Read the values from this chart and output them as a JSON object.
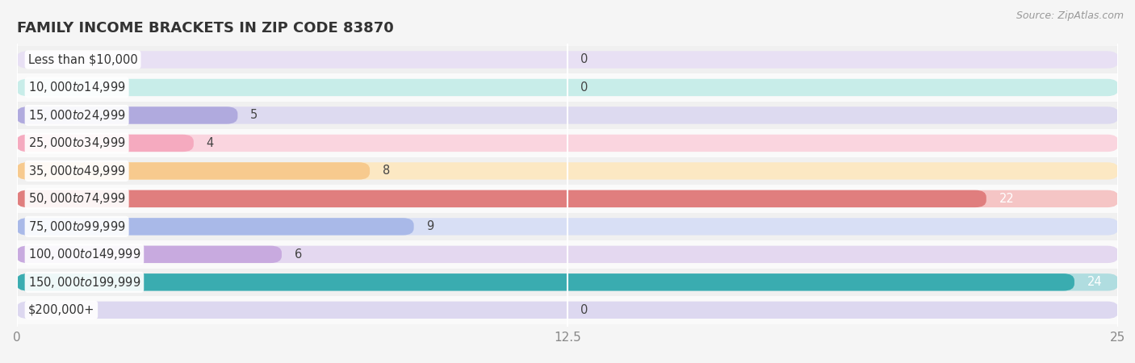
{
  "title": "FAMILY INCOME BRACKETS IN ZIP CODE 83870",
  "source": "Source: ZipAtlas.com",
  "categories": [
    "Less than $10,000",
    "$10,000 to $14,999",
    "$15,000 to $24,999",
    "$25,000 to $34,999",
    "$35,000 to $49,999",
    "$50,000 to $74,999",
    "$75,000 to $99,999",
    "$100,000 to $149,999",
    "$150,000 to $199,999",
    "$200,000+"
  ],
  "values": [
    0,
    0,
    5,
    4,
    8,
    22,
    9,
    6,
    24,
    0
  ],
  "bar_colors": [
    "#c9b4e2",
    "#7dcdc3",
    "#b0aade",
    "#f5aabf",
    "#f7ca8e",
    "#e07e7e",
    "#a9b9e8",
    "#c8aadf",
    "#3aacb0",
    "#c4b8e4"
  ],
  "bg_bar_colors": [
    "#e8e0f4",
    "#c8ede9",
    "#dddaf0",
    "#fad5df",
    "#fce8c3",
    "#f5c5c5",
    "#d8dff5",
    "#e4d8f0",
    "#b0dde0",
    "#ddd8f0"
  ],
  "value_label_colors": [
    "#555555",
    "#555555",
    "#555555",
    "#555555",
    "#555555",
    "#ffffff",
    "#555555",
    "#555555",
    "#ffffff",
    "#555555"
  ],
  "xlim": [
    0,
    25
  ],
  "xticks": [
    0,
    12.5,
    25
  ],
  "row_bg_colors": [
    "#f0f0f0",
    "#fafafa"
  ],
  "background_color": "#f5f5f5",
  "title_fontsize": 13,
  "label_fontsize": 10.5,
  "tick_fontsize": 11,
  "source_fontsize": 9
}
